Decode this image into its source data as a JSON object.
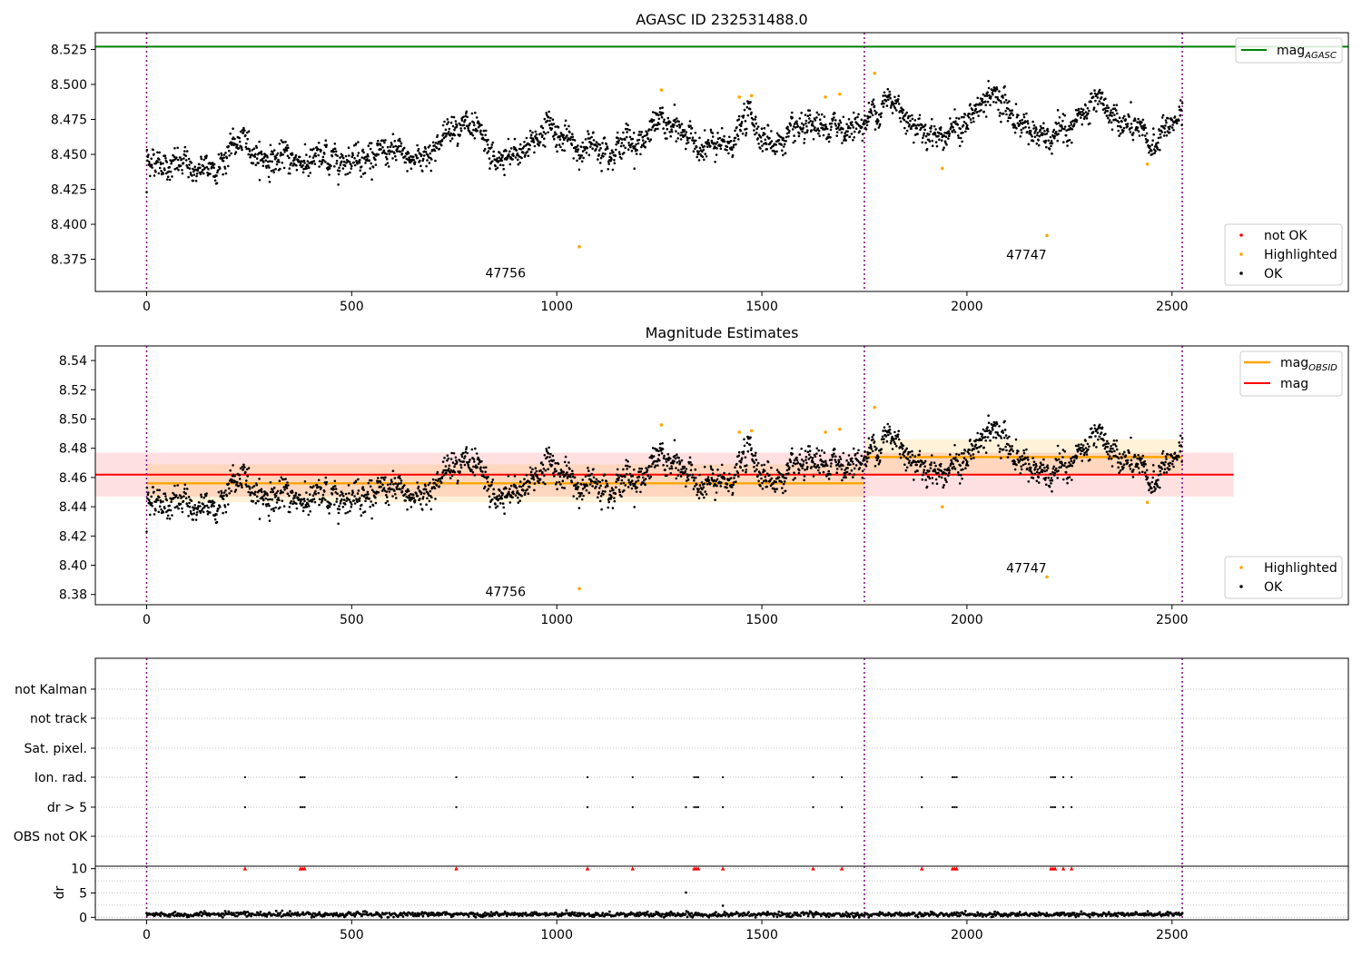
{
  "colors": {
    "ok": "#000000",
    "highlighted": "#ffa500",
    "not_ok": "#ff0000",
    "agasc": "#008000",
    "mag_obsid": "#ffa500",
    "mag": "#ff0000",
    "vline": "#800080",
    "grid": "#b0b0b0"
  },
  "chart_data": [
    {
      "type": "scatter",
      "title": "AGASC ID 232531488.0",
      "xlim": [
        -125,
        2930
      ],
      "ylim": [
        8.352,
        8.537
      ],
      "xticks": [
        0,
        500,
        1000,
        1500,
        2000,
        2500
      ],
      "xtick_labels": [
        "0",
        "500",
        "1000",
        "1500",
        "2000",
        "2500"
      ],
      "yticks": [
        8.375,
        8.4,
        8.425,
        8.45,
        8.475,
        8.5,
        8.525
      ],
      "ytick_labels": [
        "8.375",
        "8.400",
        "8.425",
        "8.450",
        "8.475",
        "8.500",
        "8.525"
      ],
      "reference_line": {
        "name": "mag_AGASC",
        "label_main": "mag",
        "label_sub": "AGASC",
        "y": 8.527
      },
      "vertical_lines": [
        0,
        1750,
        2525
      ],
      "annotations": [
        {
          "text": "47756",
          "x": 875,
          "y": 8.362
        },
        {
          "text": "47747",
          "x": 2145,
          "y": 8.375
        }
      ],
      "legend_top": [
        {
          "label": "mag",
          "sub": "AGASC",
          "kind": "line",
          "color": "agasc"
        }
      ],
      "legend_bottom": [
        {
          "label": "not OK",
          "kind": "dot",
          "color": "not_ok"
        },
        {
          "label": "Highlighted",
          "kind": "dot",
          "color": "highlighted"
        },
        {
          "label": "OK",
          "kind": "dot",
          "color": "ok"
        }
      ],
      "highlighted_points": [
        [
          1055,
          8.384
        ],
        [
          1255,
          8.496
        ],
        [
          1445,
          8.491
        ],
        [
          1475,
          8.492
        ],
        [
          1655,
          8.491
        ],
        [
          1690,
          8.493
        ],
        [
          1775,
          8.508
        ],
        [
          1940,
          8.44
        ],
        [
          2195,
          8.392
        ],
        [
          2440,
          8.443
        ]
      ],
      "ok_series": {
        "x_start": 0,
        "x_end": 2525,
        "n_points": 2400,
        "note_none": ""
      }
    },
    {
      "type": "scatter",
      "title": "Magnitude Estimates",
      "xlim": [
        -125,
        2930
      ],
      "ylim": [
        8.373,
        8.55
      ],
      "xticks": [
        0,
        500,
        1000,
        1500,
        2000,
        2500
      ],
      "xtick_labels": [
        "0",
        "500",
        "1000",
        "1500",
        "2000",
        "2500"
      ],
      "yticks": [
        8.38,
        8.4,
        8.42,
        8.44,
        8.46,
        8.48,
        8.5,
        8.52,
        8.54
      ],
      "ytick_labels": [
        "8.38",
        "8.40",
        "8.42",
        "8.44",
        "8.46",
        "8.48",
        "8.50",
        "8.52",
        "8.54"
      ],
      "mag_line": {
        "y": 8.462,
        "band": [
          8.447,
          8.477
        ],
        "x_range": [
          -125,
          2650
        ]
      },
      "mag_obsid_segments": [
        {
          "x": [
            0,
            1750
          ],
          "y": 8.456,
          "band": [
            8.443,
            8.469
          ]
        },
        {
          "x": [
            1750,
            2525
          ],
          "y": 8.474,
          "band": [
            8.462,
            8.486
          ]
        }
      ],
      "vertical_lines": [
        0,
        1750,
        2525
      ],
      "annotations": [
        {
          "text": "47756",
          "x": 875,
          "y": 8.379
        },
        {
          "text": "47747",
          "x": 2145,
          "y": 8.395
        }
      ],
      "legend_top": [
        {
          "label": "mag",
          "sub": "OBSID",
          "kind": "line",
          "color": "mag_obsid"
        },
        {
          "label": "mag",
          "sub": "",
          "kind": "line",
          "color": "mag"
        }
      ],
      "legend_bottom": [
        {
          "label": "Highlighted",
          "kind": "dot",
          "color": "highlighted"
        },
        {
          "label": "OK",
          "kind": "dot",
          "color": "ok"
        }
      ],
      "highlighted_points": [
        [
          1055,
          8.384
        ],
        [
          1255,
          8.496
        ],
        [
          1445,
          8.491
        ],
        [
          1475,
          8.492
        ],
        [
          1655,
          8.491
        ],
        [
          1690,
          8.493
        ],
        [
          1775,
          8.508
        ],
        [
          1940,
          8.44
        ],
        [
          2195,
          8.392
        ],
        [
          2440,
          8.443
        ]
      ]
    },
    {
      "type": "scatter",
      "title": "",
      "xlim": [
        -125,
        2930
      ],
      "categories": [
        "not Kalman",
        "not track",
        "Sat. pixel.",
        "Ion. rad.",
        "dr > 5",
        "OBS not OK"
      ],
      "flag_points": {
        "Ion. rad.": [
          240,
          375,
          380,
          385,
          755,
          1075,
          1185,
          1335,
          1340,
          1345,
          1405,
          1625,
          1695,
          1890,
          1965,
          1970,
          1975,
          2205,
          2210,
          2215,
          2235,
          2255
        ],
        "dr > 5": [
          240,
          375,
          380,
          385,
          755,
          1075,
          1185,
          1315,
          1335,
          1340,
          1345,
          1405,
          1625,
          1695,
          1890,
          1965,
          1970,
          1975,
          2205,
          2210,
          2215,
          2235,
          2255
        ]
      },
      "vertical_lines": [
        0,
        1750,
        2525
      ]
    },
    {
      "type": "scatter",
      "ylabel": "dr",
      "xlim": [
        -125,
        2930
      ],
      "ylim": [
        -0.5,
        10.5
      ],
      "xticks": [
        0,
        500,
        1000,
        1500,
        2000,
        2500
      ],
      "xtick_labels": [
        "0",
        "500",
        "1000",
        "1500",
        "2000",
        "2500"
      ],
      "yticks": [
        0,
        5,
        10
      ],
      "ytick_labels": [
        "0",
        "5",
        "10"
      ],
      "clipped_markers_x": [
        240,
        375,
        380,
        385,
        755,
        1075,
        1185,
        1335,
        1340,
        1345,
        1405,
        1625,
        1695,
        1890,
        1965,
        1970,
        1975,
        2205,
        2210,
        2215,
        2235,
        2255
      ],
      "outliers": [
        [
          1315,
          5.1
        ],
        [
          1405,
          2.4
        ]
      ],
      "vertical_lines": [
        0,
        1750,
        2525
      ]
    }
  ]
}
